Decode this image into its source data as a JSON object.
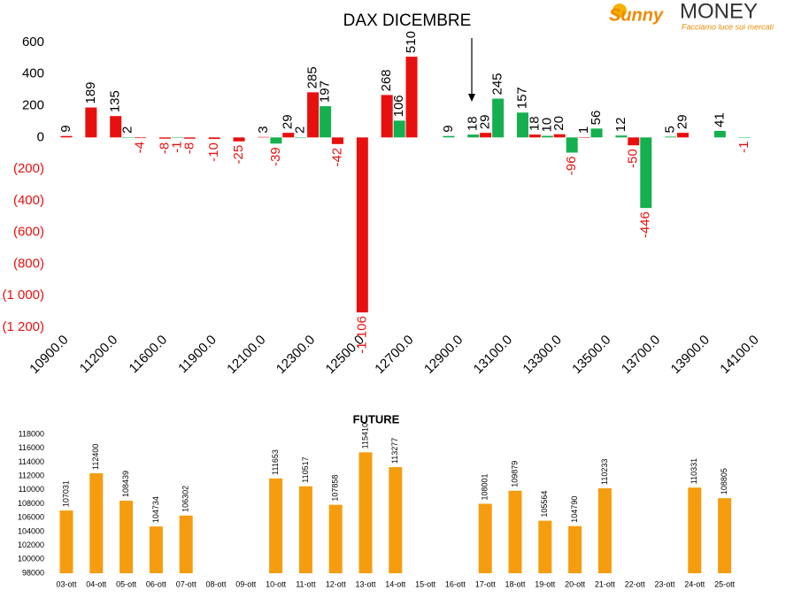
{
  "logo": {
    "brand_a": "Sunny",
    "brand_b": "MONEY",
    "tagline": "Facciamo luce sui mercati"
  },
  "chart_data": [
    {
      "type": "bar",
      "title": "DAX DICEMBRE",
      "categories": [
        "10900.0",
        null,
        "11200.0",
        null,
        "11600.0",
        null,
        "11900.0",
        null,
        "12100.0",
        null,
        "12300.0",
        null,
        "12500.0",
        null,
        "12700.0",
        null,
        "12900.0",
        null,
        "13100.0",
        null,
        "13300.0",
        null,
        "13500.0",
        null,
        "13700.0",
        null,
        "13900.0",
        null,
        "14100.0"
      ],
      "series": [
        {
          "color": "#e8100f",
          "values": [
            9,
            189,
            135,
            -4,
            -8,
            -8,
            -10,
            -25,
            3,
            29,
            285,
            -42,
            -1106,
            268,
            510,
            null,
            null,
            29,
            null,
            18,
            20,
            1,
            null,
            -50,
            null,
            29,
            null,
            null,
            null
          ],
          "value_labels": [
            "9",
            "189",
            "135",
            "-4",
            "-8",
            "-8",
            "-10",
            "-25",
            "3",
            "29",
            "285",
            "-42",
            "-1 106",
            "268",
            "510",
            null,
            null,
            "29",
            null,
            "18",
            "20",
            "1",
            null,
            "-50",
            null,
            "29",
            null,
            null,
            null
          ]
        },
        {
          "color": "#14b050",
          "values": [
            null,
            null,
            2,
            null,
            -1,
            null,
            null,
            null,
            -39,
            2,
            197,
            null,
            null,
            106,
            null,
            9,
            18,
            245,
            157,
            10,
            -96,
            56,
            12,
            -446,
            5,
            null,
            41,
            -1,
            null
          ],
          "value_labels": [
            null,
            null,
            "2",
            null,
            "-1",
            null,
            null,
            null,
            "-39",
            "2",
            "197",
            null,
            null,
            "106",
            null,
            "9",
            "18",
            "245",
            "157",
            "10",
            "-96",
            "56",
            "12",
            "-446",
            "5",
            null,
            "41",
            "-1",
            null
          ]
        }
      ],
      "ylim": [
        -1200,
        600
      ],
      "yticks": [
        600,
        400,
        200,
        0,
        {
          "value": -200,
          "label": "(200)"
        },
        {
          "value": -400,
          "label": "(400)"
        },
        {
          "value": -600,
          "label": "(600)"
        },
        {
          "value": -800,
          "label": "(800)"
        },
        {
          "value": -1000,
          "label": "(1 000)"
        },
        {
          "value": -1200,
          "label": "(1 200)"
        }
      ],
      "negative_color": "#e8100f"
    },
    {
      "type": "bar",
      "title": "FUTURE",
      "categories": [
        "03-ott",
        "04-ott",
        "05-ott",
        "06-ott",
        "07-ott",
        "08-ott",
        "09-ott",
        "10-ott",
        "11-ott",
        "12-ott",
        "13-ott",
        "14-ott",
        "15-ott",
        "16-ott",
        "17-ott",
        "18-ott",
        "19-ott",
        "20-ott",
        "21-ott",
        "22-ott",
        "23-ott",
        "24-ott",
        "25-ott"
      ],
      "values": [
        107031,
        112400,
        108439,
        104734,
        106302,
        null,
        null,
        111653,
        110517,
        107858,
        115410,
        113277,
        null,
        null,
        108001,
        109879,
        105564,
        104790,
        110233,
        null,
        null,
        110331,
        108805
      ],
      "color": "#f59d0e",
      "ylim": [
        98000,
        118000
      ],
      "yticks": [
        98000,
        100000,
        102000,
        104000,
        106000,
        108000,
        110000,
        112000,
        114000,
        116000,
        118000
      ]
    }
  ]
}
